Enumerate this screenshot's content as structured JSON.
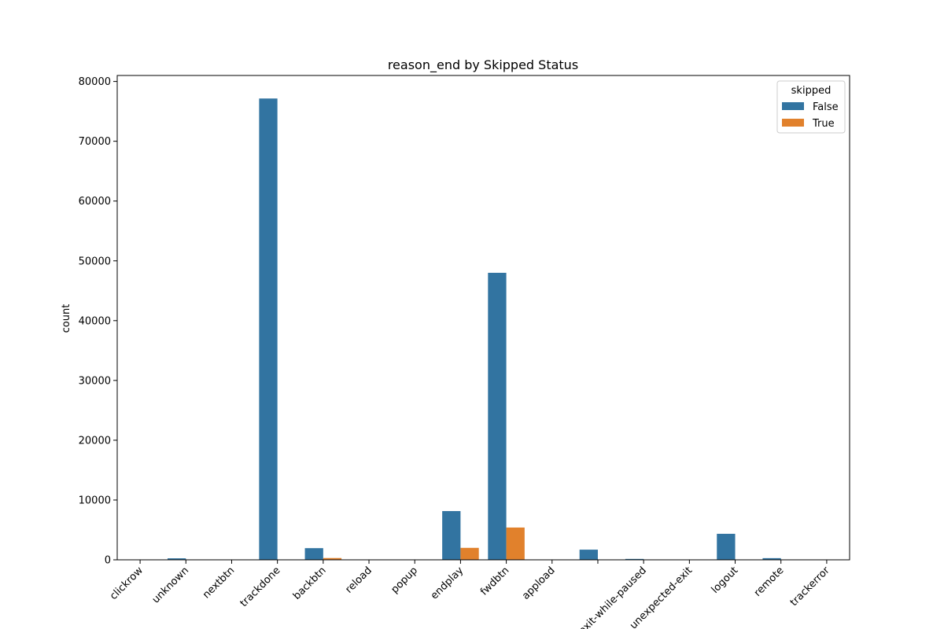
{
  "chart_data": {
    "type": "bar",
    "title": "reason_end by Skipped Status",
    "xlabel": "",
    "ylabel": "count",
    "ylim": [
      0,
      81000
    ],
    "yticks": [
      0,
      10000,
      20000,
      30000,
      40000,
      50000,
      60000,
      70000,
      80000
    ],
    "grid": false,
    "legend": {
      "title": "skipped",
      "placement": "top-right"
    },
    "categories": [
      "clickrow",
      "unknown",
      "nextbtn",
      "trackdone",
      "backbtn",
      "reload",
      "popup",
      "endplay",
      "fwdbtn",
      "appload",
      "",
      "exit-while-paused",
      "unexpected-exit",
      "logout",
      "remote",
      "trackerror"
    ],
    "series": [
      {
        "name": "False",
        "color": "#3274a1",
        "values": [
          20,
          250,
          10,
          77150,
          1950,
          10,
          10,
          8150,
          48000,
          20,
          1700,
          150,
          50,
          4350,
          280,
          20
        ]
      },
      {
        "name": "True",
        "color": "#e1812c",
        "values": [
          0,
          0,
          0,
          0,
          300,
          0,
          0,
          2000,
          5400,
          0,
          0,
          0,
          0,
          0,
          0,
          0
        ]
      }
    ]
  }
}
